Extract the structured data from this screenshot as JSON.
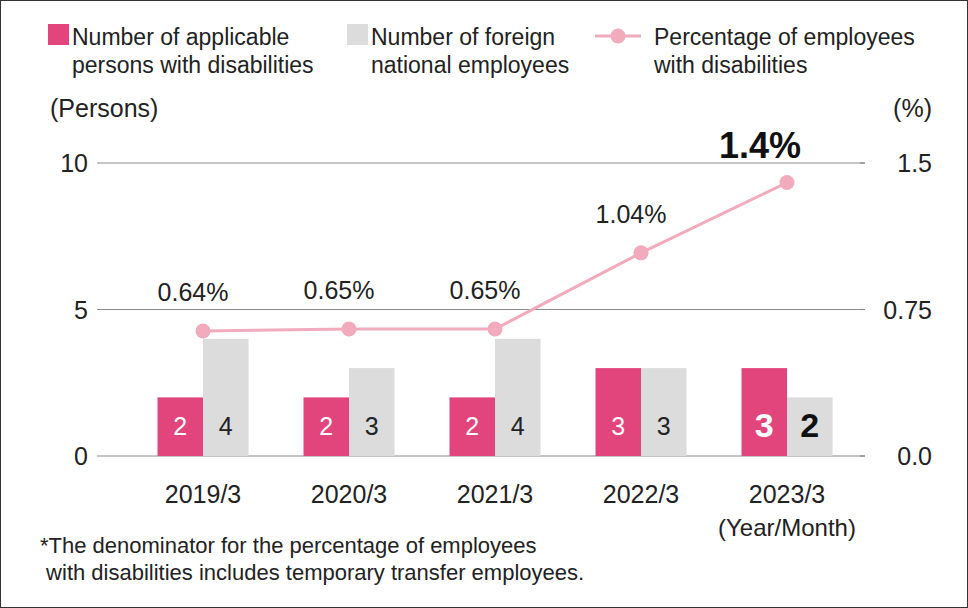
{
  "chart_data": {
    "type": "bar",
    "categories": [
      "2019/3",
      "2020/3",
      "2021/3",
      "2022/3",
      "2023/3"
    ],
    "series": [
      {
        "name": "Number of applicable\npersons with disabilities",
        "color": "#e2447c",
        "type": "bar",
        "values": [
          2,
          2,
          2,
          3,
          3
        ]
      },
      {
        "name": "Number of foreign\nnational employees",
        "color": "#dcdcdc",
        "type": "bar",
        "values": [
          4,
          3,
          4,
          3,
          2
        ]
      },
      {
        "name": "Percentage of employees\nwith disabilities",
        "color": "#f2aabd",
        "type": "line",
        "marker": "circle",
        "axis": "y2",
        "values": [
          0.64,
          0.65,
          0.65,
          1.04,
          1.4
        ],
        "value_labels": [
          "0.64%",
          "0.65%",
          "0.65%",
          "1.04%",
          "1.4%"
        ]
      }
    ],
    "ylabel": "(Persons)",
    "y2label": "(%)",
    "xlabel": "(Year/Month)",
    "ylim": [
      0,
      10
    ],
    "yticks": [
      0,
      5,
      10
    ],
    "y2lim": [
      0,
      1.5
    ],
    "y2ticks": [
      {
        "value": 0,
        "label": "0.0"
      },
      0.75,
      1.5
    ],
    "grid": true,
    "legend": "top",
    "data_labels": true,
    "annotations": [
      "*The denominator for the percentage of employees\n with disabilities includes temporary transfer employees."
    ]
  }
}
